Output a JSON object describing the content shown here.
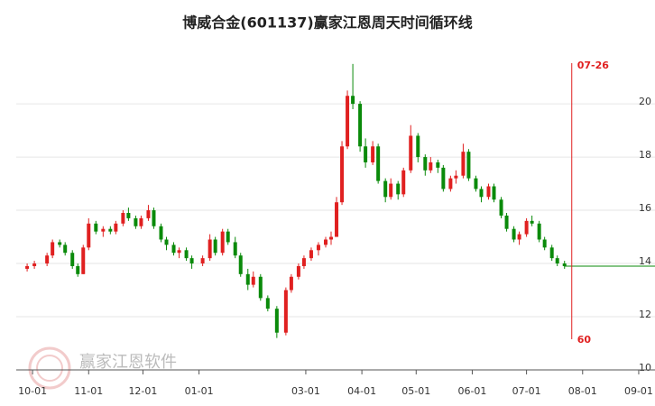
{
  "chart_data": {
    "type": "candlestick",
    "title": "博威合金(601137)赢家江恩周天时间循环线",
    "watermark": "赢家江恩软件",
    "x": [
      "09-28",
      "10-02",
      "10-09",
      "10-12",
      "10-16",
      "10-19",
      "10-23",
      "10-26",
      "10-29",
      "11-01",
      "11-05",
      "11-09",
      "11-13",
      "11-16",
      "11-20",
      "11-23",
      "11-27",
      "11-30",
      "12-04",
      "12-07",
      "12-11",
      "12-14",
      "12-18",
      "12-21",
      "12-25",
      "12-28",
      "01-03",
      "01-07",
      "01-10",
      "01-14",
      "01-17",
      "01-21",
      "01-24",
      "01-28",
      "01-31",
      "02-04",
      "02-08",
      "02-13",
      "02-18",
      "02-21",
      "02-25",
      "02-28",
      "03-04",
      "03-08",
      "03-12",
      "03-15",
      "03-18",
      "03-21",
      "03-24",
      "03-27",
      "03-31",
      "04-03",
      "04-07",
      "04-10",
      "04-14",
      "04-17",
      "04-21",
      "04-24",
      "04-28",
      "05-02",
      "05-06",
      "05-09",
      "05-13",
      "05-16",
      "05-20",
      "05-23",
      "05-27",
      "05-30",
      "06-03",
      "06-06",
      "06-10",
      "06-13",
      "06-17",
      "06-20",
      "06-24",
      "06-27",
      "07-01",
      "07-04",
      "07-08",
      "07-11",
      "07-15",
      "07-18",
      "07-22"
    ],
    "open": [
      13.8,
      13.9,
      14.0,
      14.3,
      14.8,
      14.7,
      14.4,
      13.9,
      13.6,
      14.6,
      15.5,
      15.2,
      15.3,
      15.2,
      15.5,
      15.9,
      15.7,
      15.4,
      15.7,
      16.0,
      15.4,
      14.9,
      14.7,
      14.4,
      14.5,
      14.2,
      14.0,
      14.2,
      14.9,
      14.4,
      15.2,
      14.8,
      14.3,
      13.6,
      13.2,
      13.5,
      12.7,
      12.3,
      11.4,
      13.0,
      13.5,
      13.9,
      14.2,
      14.5,
      14.7,
      14.9,
      15.0,
      16.3,
      18.4,
      20.3,
      20.0,
      18.4,
      17.8,
      18.4,
      17.1,
      16.5,
      17.0,
      16.6,
      17.5,
      18.8,
      18.0,
      17.5,
      17.8,
      17.6,
      16.8,
      17.2,
      17.3,
      18.2,
      17.2,
      16.8,
      16.5,
      16.9,
      16.4,
      15.8,
      15.3,
      14.9,
      15.1,
      15.6,
      15.5,
      14.9,
      14.6,
      14.2,
      14.0
    ],
    "high": [
      14.0,
      14.1,
      14.4,
      14.9,
      14.9,
      14.8,
      14.5,
      14.0,
      14.7,
      15.7,
      15.6,
      15.4,
      15.4,
      15.6,
      16.0,
      16.1,
      15.8,
      15.8,
      16.2,
      16.1,
      15.5,
      15.0,
      14.8,
      14.6,
      14.6,
      14.3,
      14.3,
      15.1,
      15.0,
      15.3,
      15.3,
      15.0,
      14.4,
      13.8,
      13.7,
      13.6,
      12.8,
      12.4,
      13.1,
      13.6,
      14.0,
      14.3,
      14.6,
      14.8,
      15.0,
      15.2,
      16.5,
      18.6,
      20.5,
      21.5,
      20.1,
      18.7,
      18.6,
      18.5,
      17.2,
      17.2,
      17.1,
      17.6,
      19.2,
      18.9,
      18.1,
      18.0,
      17.9,
      17.7,
      17.3,
      17.5,
      18.5,
      18.3,
      17.3,
      16.9,
      17.0,
      17.0,
      16.5,
      15.9,
      15.4,
      15.2,
      15.7,
      15.8,
      15.6,
      15.0,
      14.7,
      14.3,
      14.1
    ],
    "low": [
      13.7,
      13.8,
      13.9,
      14.2,
      14.6,
      14.3,
      13.8,
      13.5,
      13.6,
      14.5,
      15.1,
      15.0,
      15.1,
      15.1,
      15.4,
      15.6,
      15.3,
      15.3,
      15.6,
      15.3,
      14.8,
      14.5,
      14.3,
      14.2,
      14.1,
      13.8,
      13.9,
      14.1,
      14.3,
      14.3,
      14.7,
      14.2,
      13.5,
      13.0,
      13.1,
      12.6,
      12.2,
      11.2,
      11.3,
      12.9,
      13.4,
      13.8,
      14.1,
      14.3,
      14.6,
      14.7,
      15.0,
      16.2,
      18.3,
      19.8,
      18.2,
      17.6,
      17.7,
      17.0,
      16.3,
      16.4,
      16.4,
      16.5,
      17.4,
      17.8,
      17.3,
      17.4,
      17.4,
      16.7,
      16.7,
      17.0,
      17.2,
      17.1,
      16.7,
      16.3,
      16.4,
      16.3,
      15.7,
      15.2,
      14.8,
      14.7,
      15.0,
      15.4,
      14.8,
      14.5,
      14.1,
      13.9,
      13.8
    ],
    "close": [
      13.9,
      14.0,
      14.3,
      14.8,
      14.7,
      14.4,
      13.9,
      13.6,
      14.6,
      15.5,
      15.2,
      15.3,
      15.2,
      15.5,
      15.9,
      15.7,
      15.4,
      15.7,
      16.0,
      15.4,
      14.9,
      14.7,
      14.4,
      14.5,
      14.2,
      14.0,
      14.2,
      14.9,
      14.4,
      15.2,
      14.8,
      14.3,
      13.6,
      13.2,
      13.5,
      12.7,
      12.3,
      11.4,
      13.0,
      13.5,
      13.9,
      14.2,
      14.5,
      14.7,
      14.9,
      15.0,
      16.3,
      18.4,
      20.3,
      20.0,
      18.4,
      17.8,
      18.4,
      17.1,
      16.5,
      17.0,
      16.6,
      17.5,
      18.8,
      18.0,
      17.5,
      17.8,
      17.6,
      16.8,
      17.2,
      17.3,
      18.2,
      17.2,
      16.8,
      16.5,
      16.9,
      16.4,
      15.8,
      15.3,
      14.9,
      15.1,
      15.6,
      15.5,
      14.9,
      14.6,
      14.2,
      14.0,
      13.9
    ],
    "up_color": "#e02020",
    "down_color": "#0a8a0a",
    "ylim": [
      10,
      21.8
    ],
    "yticks": [
      10,
      12,
      14,
      16,
      18,
      20
    ],
    "grid": true,
    "xlim": [
      "09-13",
      "09-10"
    ],
    "xticks": [
      "10-01",
      "11-01",
      "12-01",
      "01-01",
      "03-01",
      "04-01",
      "05-01",
      "06-01",
      "07-01",
      "08-01",
      "09-01"
    ],
    "cycle_line": {
      "date": "07-26",
      "label": "07-26",
      "period": 60,
      "color": "#e02020"
    },
    "projection": {
      "from": "07-22",
      "value": 13.9,
      "color": "#0a8a0a"
    }
  }
}
